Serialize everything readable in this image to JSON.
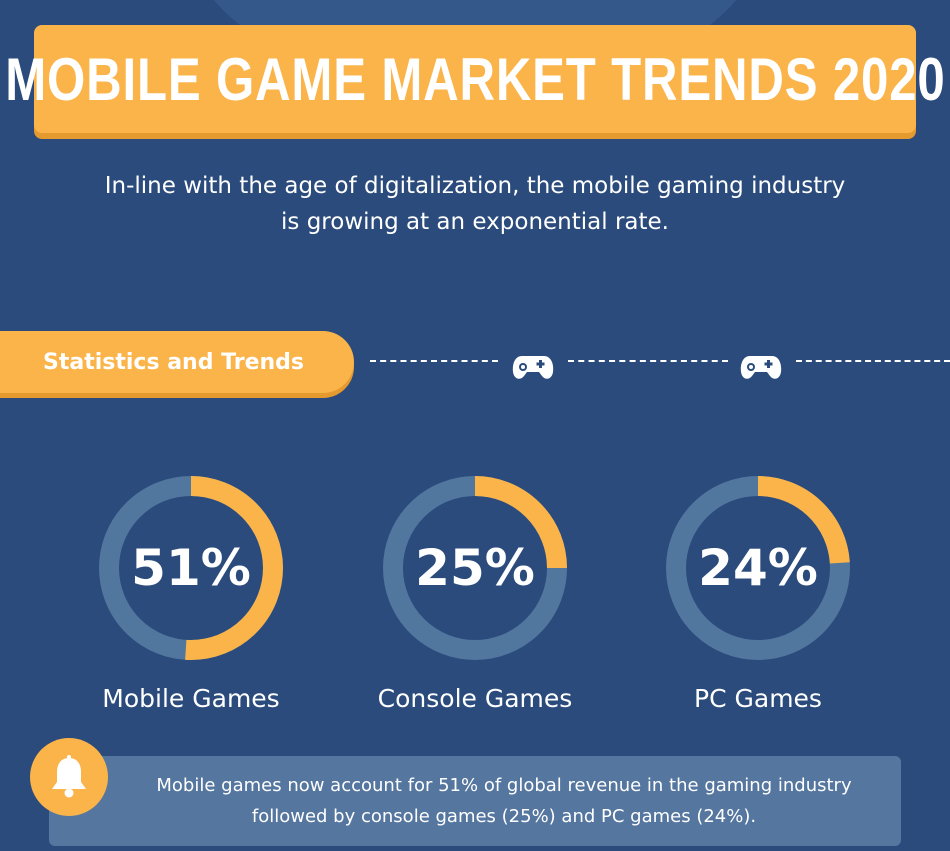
{
  "title": "MOBILE GAME MARKET TRENDS 2020",
  "subtitle": {
    "line1": "In-line with the age of digitalization, the mobile gaming industry",
    "line2": "is growing at an exponential rate."
  },
  "section": {
    "label": "Statistics and Trends",
    "icons": [
      "gamepad-icon",
      "gamepad-icon"
    ]
  },
  "colors": {
    "background": "#2a4b7c",
    "accent": "#fbb44a",
    "ring_track": "#51779f",
    "panel": "#55769f"
  },
  "chart_data": [
    {
      "type": "pie",
      "display": "donut",
      "label": "Mobile Games",
      "value": 51,
      "value_text": "51%"
    },
    {
      "type": "pie",
      "display": "donut",
      "label": "Console Games",
      "value": 25,
      "value_text": "25%"
    },
    {
      "type": "pie",
      "display": "donut",
      "label": "PC Games",
      "value": 24,
      "value_text": "24%"
    }
  ],
  "note": {
    "icon": "bell-icon",
    "line1": "Mobile games now account for 51% of global revenue in the gaming industry",
    "line2": "followed by console games (25%) and PC games (24%)."
  }
}
